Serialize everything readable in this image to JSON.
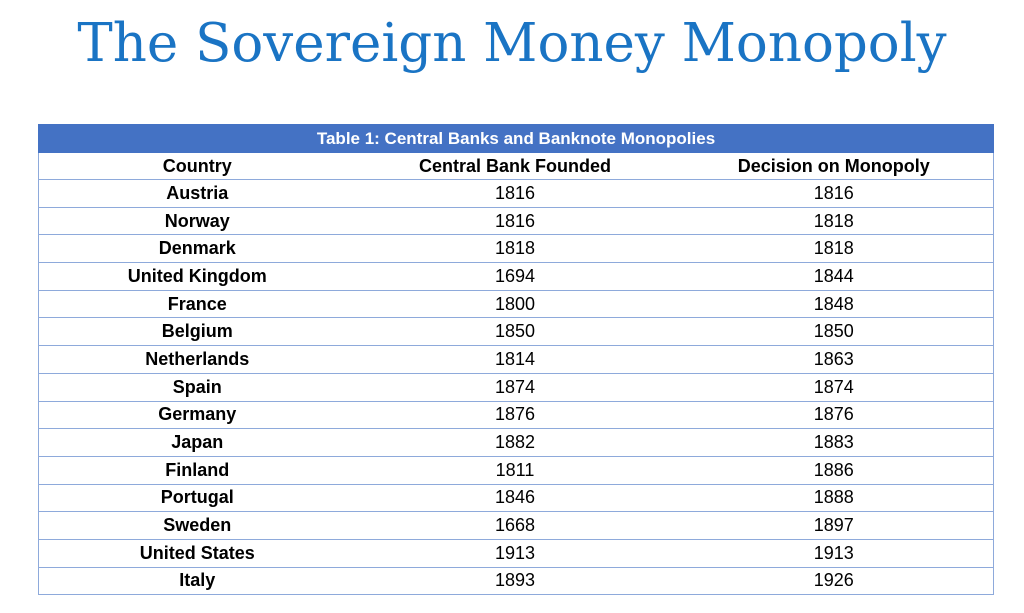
{
  "title": "The Sovereign Money Monopoly",
  "table": {
    "caption": "Table 1: Central Banks and Banknote Monopolies",
    "headers": {
      "country": "Country",
      "founded": "Central Bank Founded",
      "monopoly": "Decision on Monopoly"
    },
    "rows": [
      {
        "country": "Austria",
        "founded": "1816",
        "monopoly": "1816"
      },
      {
        "country": "Norway",
        "founded": "1816",
        "monopoly": "1818"
      },
      {
        "country": "Denmark",
        "founded": "1818",
        "monopoly": "1818"
      },
      {
        "country": "United Kingdom",
        "founded": "1694",
        "monopoly": "1844"
      },
      {
        "country": "France",
        "founded": "1800",
        "monopoly": "1848"
      },
      {
        "country": "Belgium",
        "founded": "1850",
        "monopoly": "1850"
      },
      {
        "country": "Netherlands",
        "founded": "1814",
        "monopoly": "1863"
      },
      {
        "country": "Spain",
        "founded": "1874",
        "monopoly": "1874"
      },
      {
        "country": "Germany",
        "founded": "1876",
        "monopoly": "1876"
      },
      {
        "country": "Japan",
        "founded": "1882",
        "monopoly": "1883"
      },
      {
        "country": "Finland",
        "founded": "1811",
        "monopoly": "1886"
      },
      {
        "country": "Portugal",
        "founded": "1846",
        "monopoly": "1888"
      },
      {
        "country": "Sweden",
        "founded": "1668",
        "monopoly": "1897"
      },
      {
        "country": "United States",
        "founded": "1913",
        "monopoly": "1913"
      },
      {
        "country": "Italy",
        "founded": "1893",
        "monopoly": "1926"
      }
    ]
  },
  "colors": {
    "title": "#1a74c4",
    "header_band": "#4472c4",
    "grid_line": "#8eaadb"
  }
}
